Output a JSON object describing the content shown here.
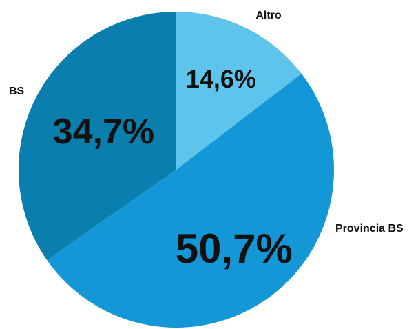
{
  "chart_data": {
    "type": "pie",
    "title": "",
    "slices": [
      {
        "label": "Altro",
        "value": 14.6,
        "display": "14,6%",
        "color": "#5ec4ec"
      },
      {
        "label": "Provincia BS",
        "value": 50.7,
        "display": "50,7%",
        "color": "#1497d6"
      },
      {
        "label": "BS",
        "value": 34.7,
        "display": "34,7%",
        "color": "#0a7fae"
      }
    ]
  }
}
